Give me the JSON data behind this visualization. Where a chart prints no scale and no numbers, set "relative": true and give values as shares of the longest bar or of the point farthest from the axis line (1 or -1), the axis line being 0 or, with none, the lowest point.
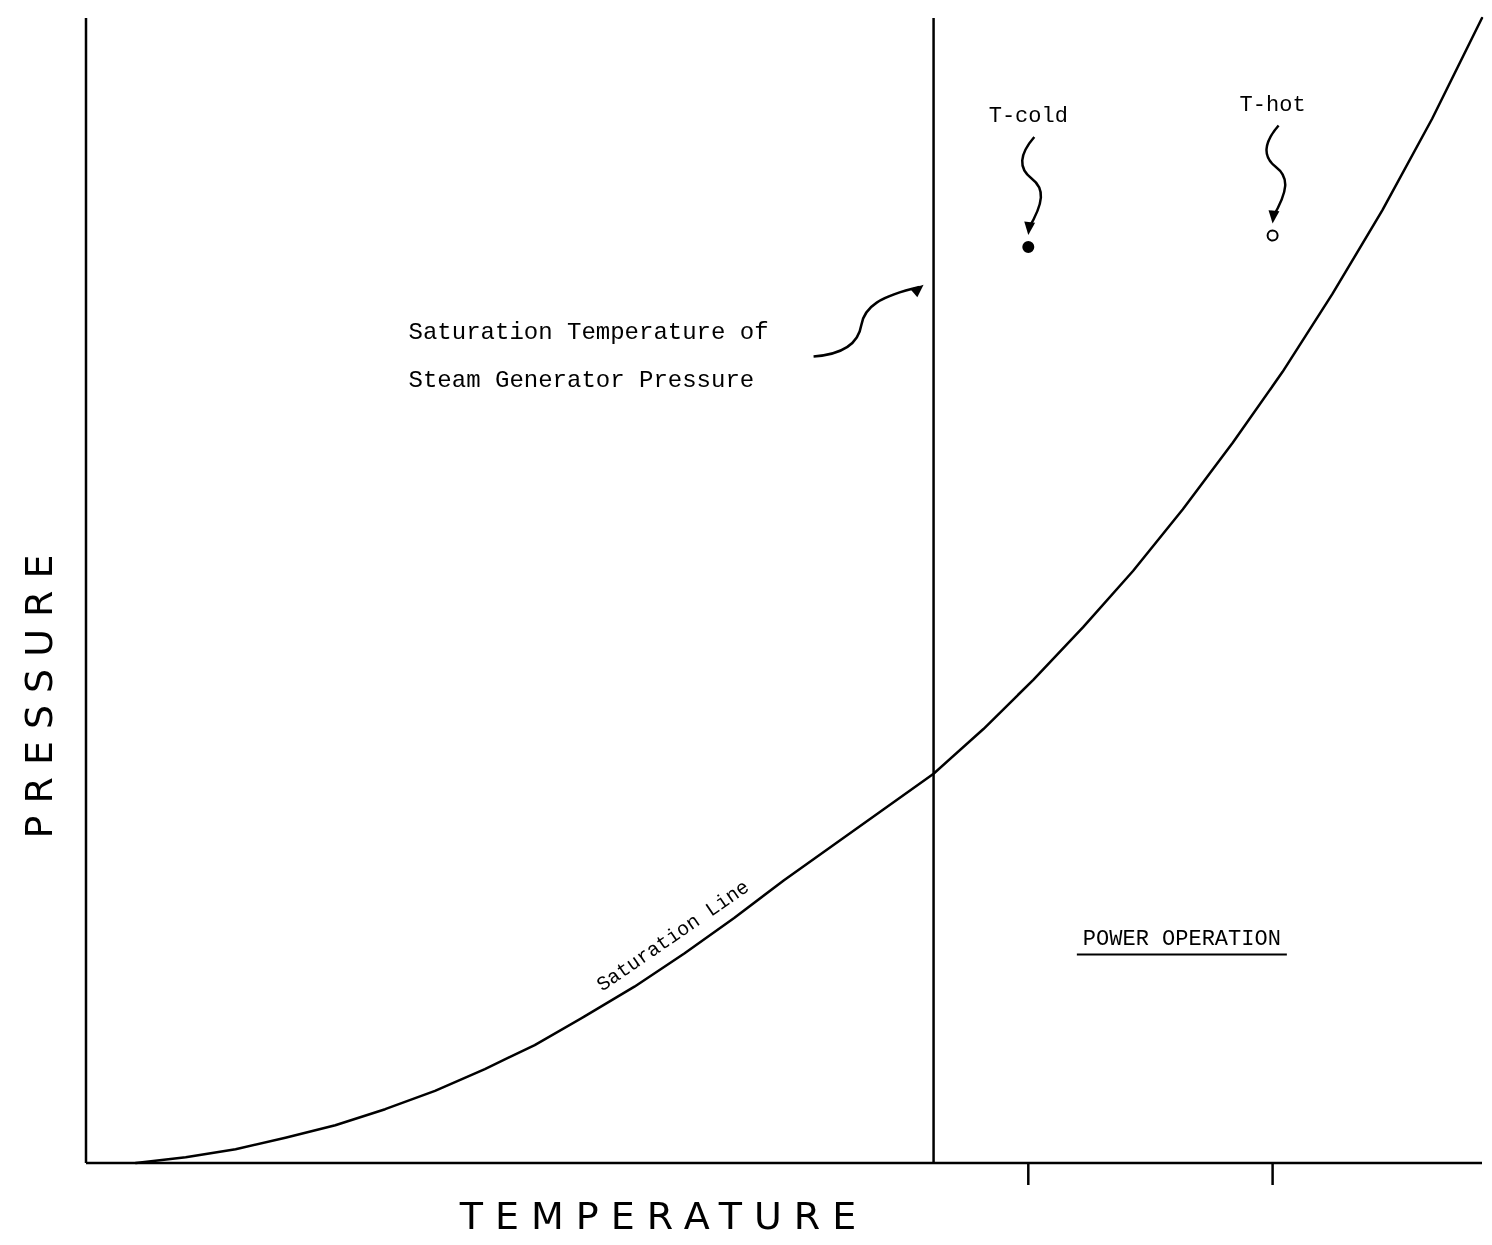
{
  "chart_data": {
    "type": "line",
    "relative": true,
    "xlabel": "TEMPERATURE",
    "ylabel": "PRESSURE",
    "line_style": "solid",
    "categories": [
      null,
      null,
      null,
      null,
      null,
      null,
      null,
      null,
      null,
      null,
      null,
      null,
      null,
      null,
      null,
      null,
      null,
      null,
      null,
      null,
      null,
      null,
      null,
      null,
      null,
      null,
      null,
      null,
      null
    ],
    "series": [
      {
        "name": "Saturation Line",
        "color": "#000000",
        "values": [
          null,
          0,
          0.005,
          0.012,
          0.022,
          0.033,
          0.047,
          0.063,
          0.082,
          0.103,
          0.128,
          0.154,
          0.183,
          0.214,
          0.247,
          0.278,
          0.309,
          0.34,
          0.379,
          0.422,
          0.468,
          0.517,
          0.571,
          0.629,
          0.691,
          0.759,
          0.832,
          0.912,
          1
        ]
      }
    ],
    "annotations": [
      "Saturation Temperature of Steam Generator Pressure",
      "T-cold",
      "T-hot",
      "POWER OPERATION"
    ]
  }
}
